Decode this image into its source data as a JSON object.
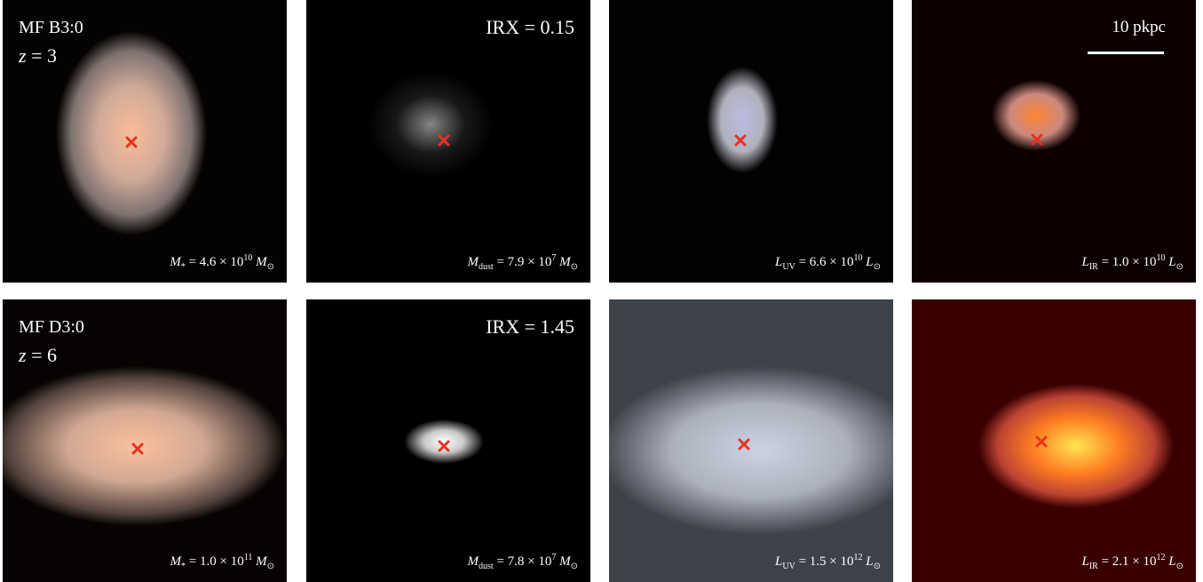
{
  "scale_bar": "10 pkpc",
  "rows": [
    {
      "galaxy": "MF B3:0",
      "redshift": {
        "symbol": "z",
        "value": "= 3"
      },
      "irx": "IRX = 0.15",
      "panels": [
        {
          "symbol": "M",
          "sub": "*",
          "value": "= 4.6 × 10",
          "exp": "10",
          "unit": "M",
          "unit_sub": "⊙"
        },
        {
          "symbol": "M",
          "sub": "dust",
          "value": "= 7.9 × 10",
          "exp": "7",
          "unit": "M",
          "unit_sub": "⊙"
        },
        {
          "symbol": "L",
          "sub": "UV",
          "value": "= 6.6 × 10",
          "exp": "10",
          "unit": "L",
          "unit_sub": "⊙"
        },
        {
          "symbol": "L",
          "sub": "IR",
          "value": "= 1.0 × 10",
          "exp": "10",
          "unit": "L",
          "unit_sub": "⊙"
        }
      ]
    },
    {
      "galaxy": "MF D3:0",
      "redshift": {
        "symbol": "z",
        "value": "= 6"
      },
      "irx": "IRX = 1.45",
      "panels": [
        {
          "symbol": "M",
          "sub": "*",
          "value": "= 1.0 × 10",
          "exp": "11",
          "unit": "M",
          "unit_sub": "⊙"
        },
        {
          "symbol": "M",
          "sub": "dust",
          "value": "= 7.8 × 10",
          "exp": "7",
          "unit": "M",
          "unit_sub": "⊙"
        },
        {
          "symbol": "L",
          "sub": "UV",
          "value": "= 1.5 × 10",
          "exp": "12",
          "unit": "L",
          "unit_sub": "⊙"
        },
        {
          "symbol": "L",
          "sub": "IR",
          "value": "= 2.1 × 10",
          "exp": "12",
          "unit": "L",
          "unit_sub": "⊙"
        }
      ]
    }
  ]
}
